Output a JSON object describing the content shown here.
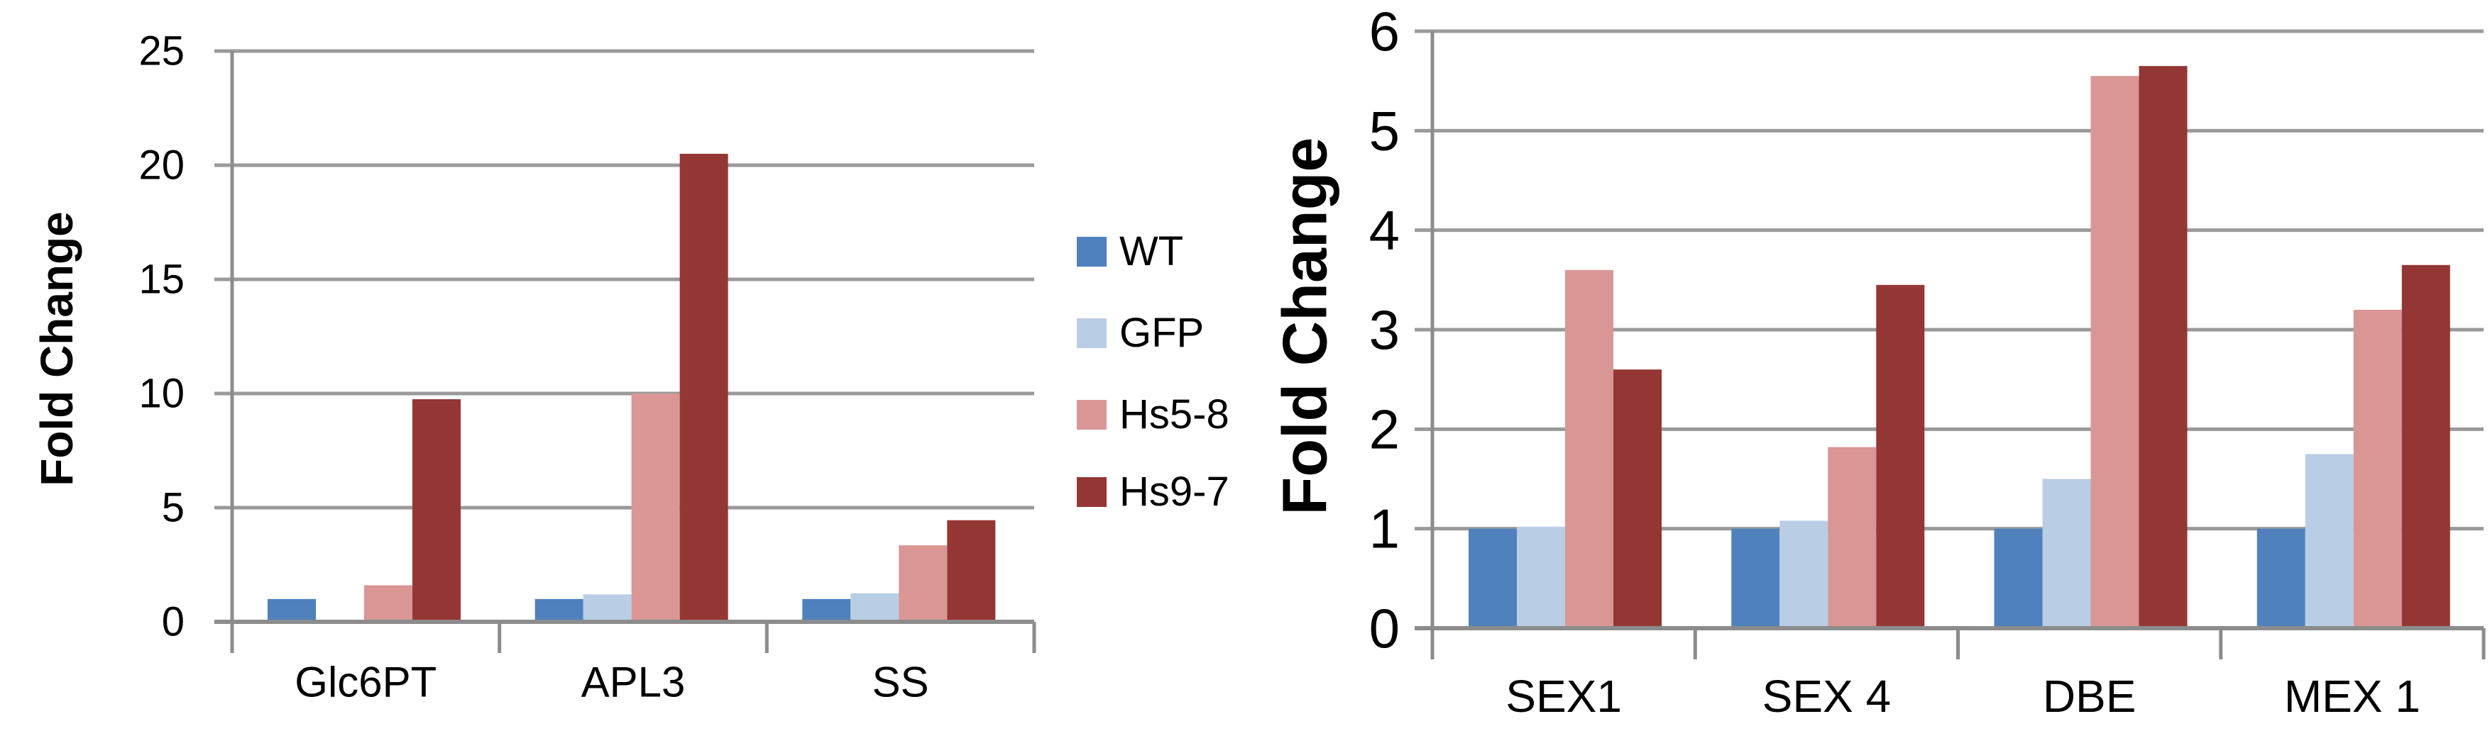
{
  "page": {
    "background": "#ffffff"
  },
  "colors": {
    "axis": "#8c8c8c",
    "gridline": "#9a9a9a",
    "text": "#000000"
  },
  "legend": {
    "items": [
      {
        "label": "WT",
        "color": "#4F81BD"
      },
      {
        "label": "GFP",
        "color": "#B9CDE5"
      },
      {
        "label": "Hs5-8",
        "color": "#D99694"
      },
      {
        "label": "Hs9-7",
        "color": "#943634"
      }
    ]
  },
  "chart_data": [
    {
      "type": "bar",
      "title": "",
      "ylabel": "Fold Change",
      "xlabel": "",
      "ylim": [
        0,
        25
      ],
      "ytick_step": 5,
      "yticks": [
        "0",
        "5",
        "10",
        "15",
        "20",
        "25"
      ],
      "grid": true,
      "legend_position": "right-of-plot",
      "categories": [
        "Glc6PT",
        "APL3",
        "SS"
      ],
      "series": [
        {
          "name": "WT",
          "color": "#4F81BD",
          "values": [
            1.0,
            1.0,
            1.0
          ]
        },
        {
          "name": "GFP",
          "color": "#B9CDE5",
          "values": [
            0,
            1.2,
            1.25
          ]
        },
        {
          "name": "Hs5-8",
          "color": "#D99694",
          "values": [
            1.6,
            10.0,
            3.35
          ]
        },
        {
          "name": "Hs9-7",
          "color": "#943634",
          "values": [
            9.75,
            20.5,
            4.45
          ]
        }
      ]
    },
    {
      "type": "bar",
      "title": "",
      "ylabel": "Fold Change",
      "xlabel": "",
      "ylim": [
        0,
        6
      ],
      "ytick_step": 1,
      "yticks": [
        "0",
        "1",
        "2",
        "3",
        "4",
        "5",
        "6"
      ],
      "grid": true,
      "legend_position": "none",
      "categories": [
        "SEX1",
        "SEX 4",
        "DBE",
        "MEX 1"
      ],
      "series": [
        {
          "name": "WT",
          "color": "#4F81BD",
          "values": [
            1.0,
            1.0,
            1.0,
            1.0
          ]
        },
        {
          "name": "GFP",
          "color": "#B9CDE5",
          "values": [
            1.02,
            1.08,
            1.5,
            1.75
          ]
        },
        {
          "name": "Hs5-8",
          "color": "#D99694",
          "values": [
            3.6,
            1.82,
            5.55,
            3.2
          ]
        },
        {
          "name": "Hs9-7",
          "color": "#943634",
          "values": [
            2.6,
            3.45,
            5.65,
            3.65
          ]
        }
      ]
    }
  ]
}
